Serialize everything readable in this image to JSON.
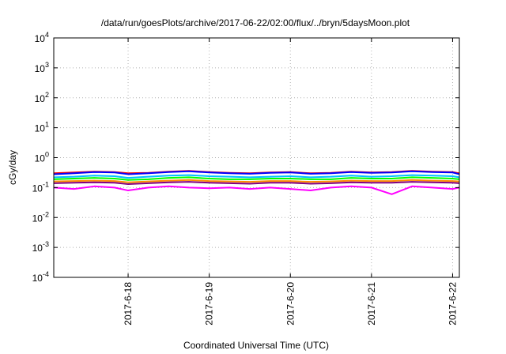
{
  "chart_data": {
    "type": "line",
    "title": "/data/run/goesPlots/archive/2017-06-22/02:00/flux/../bryn/5daysMoon.plot",
    "xlabel": "Coordinated Universal Time (UTC)",
    "ylabel": "cGy/day",
    "y_scale": "log",
    "ylim": [
      0.0001,
      10000
    ],
    "y_ticks": [
      {
        "base": "10",
        "exp": "-4",
        "value": 0.0001
      },
      {
        "base": "10",
        "exp": "-3",
        "value": 0.001
      },
      {
        "base": "10",
        "exp": "-2",
        "value": 0.01
      },
      {
        "base": "10",
        "exp": "-1",
        "value": 0.1
      },
      {
        "base": "10",
        "exp": "0",
        "value": 1
      },
      {
        "base": "10",
        "exp": "1",
        "value": 10
      },
      {
        "base": "10",
        "exp": "2",
        "value": 100
      },
      {
        "base": "10",
        "exp": "3",
        "value": 1000
      },
      {
        "base": "10",
        "exp": "4",
        "value": 10000
      }
    ],
    "xlim": [
      "2017-06-17 02:00",
      "2017-06-22 02:00"
    ],
    "x_ticks": [
      "2017-6-18",
      "2017-6-19",
      "2017-6-20",
      "2017-6-21",
      "2017-6-22"
    ],
    "grid": true,
    "legend": "none",
    "x": [
      "2017-06-17 02:00",
      "2017-06-17 08:00",
      "2017-06-17 14:00",
      "2017-06-17 20:00",
      "2017-06-18 00:00",
      "2017-06-18 06:00",
      "2017-06-18 12:00",
      "2017-06-18 18:00",
      "2017-06-19 00:00",
      "2017-06-19 06:00",
      "2017-06-19 12:00",
      "2017-06-19 18:00",
      "2017-06-20 00:00",
      "2017-06-20 06:00",
      "2017-06-20 12:00",
      "2017-06-20 18:00",
      "2017-06-21 00:00",
      "2017-06-21 06:00",
      "2017-06-21 12:00",
      "2017-06-21 18:00",
      "2017-06-22 00:00",
      "2017-06-22 02:00"
    ],
    "series": [
      {
        "color": "#ff0000",
        "values": [
          0.3,
          0.32,
          0.34,
          0.33,
          0.3,
          0.31,
          0.34,
          0.36,
          0.33,
          0.31,
          0.3,
          0.32,
          0.33,
          0.3,
          0.31,
          0.34,
          0.32,
          0.33,
          0.36,
          0.34,
          0.33,
          0.3
        ]
      },
      {
        "color": "#0000ff",
        "values": [
          0.28,
          0.3,
          0.33,
          0.32,
          0.28,
          0.3,
          0.33,
          0.35,
          0.32,
          0.3,
          0.29,
          0.31,
          0.32,
          0.29,
          0.3,
          0.33,
          0.31,
          0.32,
          0.35,
          0.33,
          0.32,
          0.28
        ]
      },
      {
        "color": "#00bfff",
        "values": [
          0.22,
          0.23,
          0.25,
          0.24,
          0.21,
          0.23,
          0.25,
          0.26,
          0.24,
          0.23,
          0.22,
          0.23,
          0.24,
          0.22,
          0.23,
          0.25,
          0.23,
          0.24,
          0.26,
          0.25,
          0.24,
          0.22
        ]
      },
      {
        "color": "#00ff00",
        "values": [
          0.19,
          0.2,
          0.21,
          0.2,
          0.18,
          0.19,
          0.21,
          0.22,
          0.2,
          0.19,
          0.19,
          0.2,
          0.2,
          0.19,
          0.19,
          0.21,
          0.2,
          0.2,
          0.22,
          0.21,
          0.2,
          0.19
        ]
      },
      {
        "color": "#ff8c00",
        "values": [
          0.16,
          0.165,
          0.17,
          0.165,
          0.15,
          0.16,
          0.17,
          0.18,
          0.165,
          0.16,
          0.155,
          0.165,
          0.165,
          0.155,
          0.16,
          0.17,
          0.165,
          0.165,
          0.18,
          0.17,
          0.165,
          0.16
        ]
      },
      {
        "color": "#800080",
        "values": [
          0.14,
          0.145,
          0.15,
          0.145,
          0.13,
          0.14,
          0.15,
          0.155,
          0.145,
          0.14,
          0.135,
          0.145,
          0.145,
          0.135,
          0.14,
          0.15,
          0.145,
          0.145,
          0.155,
          0.15,
          0.145,
          0.14
        ]
      },
      {
        "color": "#ff00ff",
        "values": [
          0.1,
          0.09,
          0.11,
          0.1,
          0.08,
          0.1,
          0.11,
          0.1,
          0.095,
          0.1,
          0.09,
          0.1,
          0.09,
          0.08,
          0.1,
          0.11,
          0.1,
          0.06,
          0.11,
          0.1,
          0.09,
          0.1
        ]
      }
    ]
  }
}
